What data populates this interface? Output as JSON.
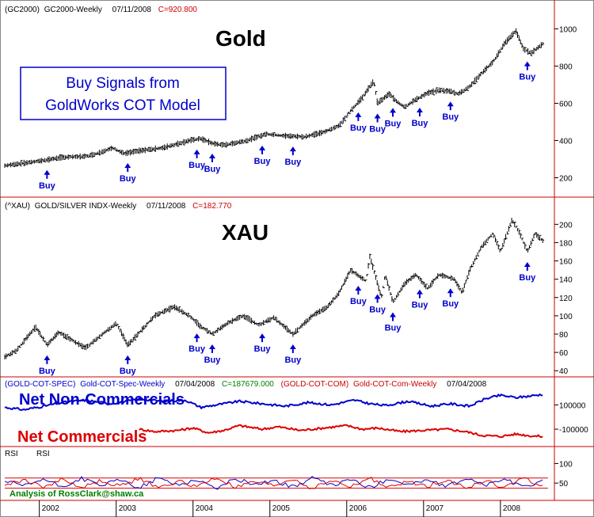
{
  "colors": {
    "frame": "#cc0000",
    "buy": "#0000cc",
    "spec": "#0000cc",
    "com": "#dd0000",
    "rsi_blue": "#0000cc",
    "rsi_red": "#dd0000",
    "credit": "#008000",
    "price": "#000000"
  },
  "panels": {
    "gold": {
      "header": {
        "sym": "(GC2000)",
        "name": "GC2000-Weekly",
        "date": "07/11/2008",
        "close": "C=920.800"
      },
      "title": "Gold",
      "callout": [
        "Buy Signals from",
        "GoldWorks COT Model"
      ],
      "ticks": [
        "1000",
        "800",
        "600",
        "400",
        "200"
      ]
    },
    "xau": {
      "header": {
        "sym": "(^XAU)",
        "name": "GOLD/SILVER INDX-Weekly",
        "date": "07/11/2008",
        "close": "C=182.770"
      },
      "title": "XAU",
      "ticks": [
        "200",
        "180",
        "160",
        "140",
        "120",
        "100",
        "80",
        "60",
        "40"
      ]
    },
    "cot": {
      "header": {
        "spec_sym": "(GOLD-COT-SPEC)",
        "spec_name": "Gold-COT-Spec-Weekly",
        "spec_date": "07/04/2008",
        "spec_close": "C=187679.000",
        "com_sym": "(GOLD-COT-COM)",
        "com_name": "Gold-COT-Com-Weekly",
        "com_date": "07/04/2008"
      },
      "label_spec": "Net Non-Commercials",
      "label_com": "Net Commercials",
      "ticks": [
        "100000",
        "-100000"
      ]
    },
    "rsi": {
      "header": [
        "RSI",
        "RSI"
      ],
      "ticks": [
        "100",
        "50"
      ],
      "credit": "Analysis of RossClark@shaw.ca"
    }
  },
  "buy_label": "Buy",
  "chart_data": [
    {
      "type": "line",
      "title": "Gold",
      "x_ticks": [
        "2002",
        "2003",
        "2004",
        "2005",
        "2006",
        "2007",
        "2008"
      ],
      "x": [
        2001.55,
        2002.0,
        2002.3,
        2002.6,
        2002.75,
        2002.95,
        2003.1,
        2003.3,
        2003.6,
        2003.95,
        2004.1,
        2004.25,
        2004.4,
        2004.7,
        2004.95,
        2005.2,
        2005.45,
        2005.7,
        2005.9,
        2006.05,
        2006.2,
        2006.35,
        2006.4,
        2006.55,
        2006.65,
        2006.75,
        2006.9,
        2007.05,
        2007.2,
        2007.35,
        2007.45,
        2007.6,
        2007.75,
        2007.9,
        2008.05,
        2008.2,
        2008.3,
        2008.4,
        2008.55
      ],
      "y": [
        265,
        290,
        310,
        315,
        330,
        360,
        330,
        345,
        360,
        400,
        410,
        385,
        375,
        400,
        435,
        425,
        420,
        445,
        480,
        560,
        630,
        720,
        600,
        650,
        610,
        580,
        620,
        655,
        670,
        665,
        650,
        690,
        760,
        820,
        920,
        990,
        890,
        870,
        920
      ],
      "buy_signals": [
        2002.1,
        2003.15,
        2004.05,
        2004.25,
        2004.9,
        2005.3,
        2006.15,
        2006.4,
        2006.6,
        2006.95,
        2007.35,
        2008.35
      ],
      "ylim": [
        100,
        1070
      ],
      "y_ticks": [
        1000,
        800,
        600,
        400,
        200
      ]
    },
    {
      "type": "line",
      "title": "XAU",
      "x": [
        2001.55,
        2001.7,
        2001.95,
        2002.1,
        2002.25,
        2002.45,
        2002.6,
        2002.85,
        2003.0,
        2003.15,
        2003.5,
        2003.75,
        2003.95,
        2004.1,
        2004.25,
        2004.45,
        2004.65,
        2004.85,
        2005.05,
        2005.3,
        2005.55,
        2005.75,
        2005.9,
        2006.05,
        2006.25,
        2006.3,
        2006.45,
        2006.5,
        2006.6,
        2006.75,
        2006.9,
        2007.05,
        2007.2,
        2007.4,
        2007.5,
        2007.6,
        2007.75,
        2007.9,
        2008.0,
        2008.15,
        2008.25,
        2008.35,
        2008.45,
        2008.55
      ],
      "y": [
        55,
        62,
        88,
        68,
        82,
        72,
        65,
        82,
        92,
        68,
        100,
        110,
        100,
        88,
        80,
        92,
        100,
        90,
        98,
        80,
        100,
        110,
        125,
        150,
        138,
        165,
        120,
        145,
        115,
        135,
        145,
        130,
        145,
        140,
        125,
        150,
        175,
        190,
        170,
        205,
        190,
        170,
        190,
        182
      ],
      "buy_signals": [
        2002.1,
        2003.15,
        2004.05,
        2004.25,
        2004.9,
        2005.3,
        2006.15,
        2006.4,
        2006.6,
        2006.95,
        2007.35,
        2008.35
      ],
      "ylim": [
        35,
        215
      ],
      "y_ticks": [
        200,
        180,
        160,
        140,
        120,
        100,
        80,
        60,
        40
      ]
    },
    {
      "type": "line",
      "title": "",
      "series": [
        {
          "name": "Net Non-Commercials",
          "x": [
            2001.55,
            2001.8,
            2002.1,
            2002.3,
            2002.6,
            2002.9,
            2003.1,
            2003.3,
            2003.6,
            2003.9,
            2004.1,
            2004.3,
            2004.6,
            2004.9,
            2005.2,
            2005.5,
            2005.8,
            2006.1,
            2006.3,
            2006.5,
            2006.8,
            2007.1,
            2007.35,
            2007.6,
            2007.8,
            2008.0,
            2008.2,
            2008.4,
            2008.55
          ],
          "values": [
            80000,
            60000,
            95000,
            120000,
            140000,
            110000,
            125000,
            150000,
            130000,
            140000,
            80000,
            100000,
            130000,
            110000,
            90000,
            120000,
            100000,
            140000,
            110000,
            95000,
            130000,
            90000,
            110000,
            90000,
            150000,
            180000,
            160000,
            175000,
            187679
          ]
        },
        {
          "name": "Net Commercials",
          "x": [
            2003.3,
            2003.5,
            2003.8,
            2004.0,
            2004.2,
            2004.4,
            2004.6,
            2004.9,
            2005.1,
            2005.4,
            2005.7,
            2006.0,
            2006.2,
            2006.4,
            2006.7,
            2007.0,
            2007.3,
            2007.55,
            2007.75,
            2008.0,
            2008.2,
            2008.4,
            2008.55
          ],
          "values": [
            -100000,
            -120000,
            -110000,
            -90000,
            -130000,
            -110000,
            -70000,
            -100000,
            -80000,
            -110000,
            -90000,
            -70000,
            -100000,
            -90000,
            -120000,
            -110000,
            -100000,
            -120000,
            -150000,
            -160000,
            -140000,
            -155000,
            -160000
          ]
        }
      ],
      "y_ticks": [
        100000,
        -100000
      ],
      "ylim": [
        -230000,
        240000
      ]
    },
    {
      "type": "line",
      "title": "",
      "series": [
        {
          "name": "RSI",
          "color_key": "rsi_blue",
          "x": [
            2001.55,
            2001.8,
            2002.05,
            2002.3,
            2002.55,
            2002.8,
            2003.05,
            2003.3,
            2003.55,
            2003.8,
            2004.05,
            2004.3,
            2004.55,
            2004.8,
            2005.05,
            2005.3,
            2005.55,
            2005.8,
            2006.05,
            2006.3,
            2006.55,
            2006.8,
            2007.05,
            2007.3,
            2007.55,
            2007.8,
            2008.05,
            2008.3,
            2008.55
          ],
          "values": [
            55,
            42,
            60,
            40,
            62,
            44,
            58,
            38,
            63,
            45,
            59,
            36,
            61,
            47,
            57,
            39,
            64,
            43,
            60,
            37,
            62,
            46,
            58,
            40,
            63,
            44,
            61,
            38,
            57
          ]
        },
        {
          "name": "RSI",
          "color_key": "rsi_red",
          "x": [
            2001.55,
            2001.8,
            2002.05,
            2002.3,
            2002.55,
            2002.8,
            2003.05,
            2003.3,
            2003.55,
            2003.8,
            2004.05,
            2004.3,
            2004.55,
            2004.8,
            2005.05,
            2005.3,
            2005.55,
            2005.8,
            2006.05,
            2006.3,
            2006.55,
            2006.8,
            2007.05,
            2007.3,
            2007.55,
            2007.8,
            2008.05,
            2008.3,
            2008.55
          ],
          "values": [
            45,
            58,
            40,
            60,
            38,
            56,
            42,
            62,
            37,
            55,
            41,
            64,
            39,
            53,
            43,
            61,
            36,
            57,
            40,
            63,
            38,
            54,
            42,
            60,
            37,
            56,
            39,
            62,
            43
          ]
        }
      ],
      "y_ticks": [
        100,
        50
      ],
      "ref_lines": [
        63,
        37
      ],
      "ylim": [
        10,
        115
      ]
    }
  ]
}
